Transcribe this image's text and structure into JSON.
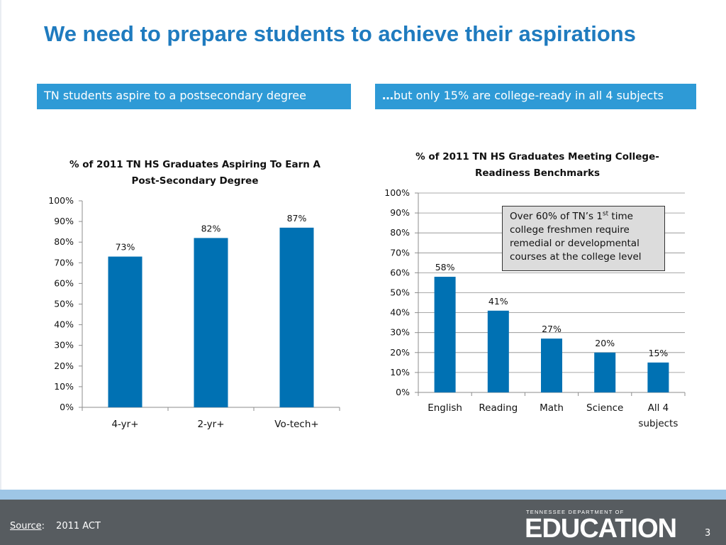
{
  "slide": {
    "title": "We need to prepare students to achieve their aspirations",
    "left_banner": "TN students aspire to a postsecondary degree",
    "right_banner_prefix": "…",
    "right_banner_text": "but only 15% are college-ready in all 4 subjects",
    "callout": {
      "line1_pre": "Over 60% of TN’s 1",
      "line1_sup": "st",
      "line1_post": " time",
      "rest": "college freshmen require remedial or developmental courses at the college level"
    },
    "footer": {
      "source_label": "Source",
      "source_colon": ":",
      "source_value": "2011 ACT",
      "logo_top": "TENNESSEE DEPARTMENT OF",
      "logo_main": "EDUCATION",
      "page_number": "3"
    },
    "colors": {
      "title": "#1f7bbf",
      "banner": "#2e9ad6",
      "bar": "#0071b3",
      "footer": "#575c60",
      "footer_stripe": "#9ec6e6"
    }
  },
  "chart_data": [
    {
      "type": "bar",
      "title_lines": [
        "% of 2011 TN HS Graduates Aspiring To Earn A",
        "Post-Secondary Degree"
      ],
      "categories": [
        "4-yr+",
        "2-yr+",
        "Vo-tech+"
      ],
      "category_lines": [
        [
          "4-yr+"
        ],
        [
          "2-yr+"
        ],
        [
          "Vo-tech+"
        ]
      ],
      "values": [
        73,
        82,
        87
      ],
      "data_labels": [
        "73%",
        "82%",
        "87%"
      ],
      "ylim": [
        0,
        100
      ],
      "yticks": [
        0,
        10,
        20,
        30,
        40,
        50,
        60,
        70,
        80,
        90,
        100
      ],
      "ytick_labels": [
        "0%",
        "10%",
        "20%",
        "30%",
        "40%",
        "50%",
        "60%",
        "70%",
        "80%",
        "90%",
        "100%"
      ],
      "grid": false,
      "xlabel": "",
      "ylabel": ""
    },
    {
      "type": "bar",
      "title_lines": [
        "% of 2011 TN HS Graduates Meeting College-",
        "Readiness Benchmarks"
      ],
      "categories": [
        "English",
        "Reading",
        "Math",
        "Science",
        "All 4 subjects"
      ],
      "category_lines": [
        [
          "English"
        ],
        [
          "Reading"
        ],
        [
          "Math"
        ],
        [
          "Science"
        ],
        [
          "All 4",
          "subjects"
        ]
      ],
      "values": [
        58,
        41,
        27,
        20,
        15
      ],
      "data_labels": [
        "58%",
        "41%",
        "27%",
        "20%",
        "15%"
      ],
      "ylim": [
        0,
        100
      ],
      "yticks": [
        0,
        10,
        20,
        30,
        40,
        50,
        60,
        70,
        80,
        90,
        100
      ],
      "ytick_labels": [
        "0%",
        "10%",
        "20%",
        "30%",
        "40%",
        "50%",
        "60%",
        "70%",
        "80%",
        "90%",
        "100%"
      ],
      "grid": true,
      "xlabel": "",
      "ylabel": ""
    }
  ]
}
